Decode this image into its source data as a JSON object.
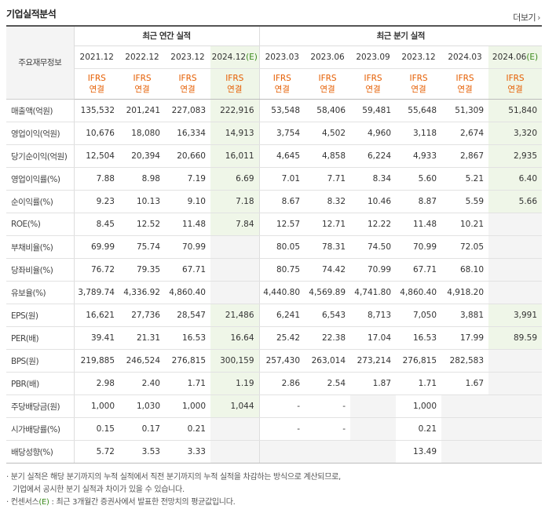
{
  "title": "기업실적분석",
  "more": {
    "label": "더보기",
    "icon": "chevron-right-icon"
  },
  "header": {
    "row_label": "주요재무정보",
    "annual_group": "최근 연간 실적",
    "quarter_group": "최근 분기 실적",
    "ifrs_top": "IFRS",
    "ifrs_bottom": "연결",
    "annual_periods": [
      "2021.12",
      "2022.12",
      "2023.12",
      "2024.12"
    ],
    "annual_est_mark": "(E)",
    "quarter_periods": [
      "2023.03",
      "2023.06",
      "2023.09",
      "2023.12",
      "2024.03",
      "2024.06"
    ],
    "quarter_est_mark": "(E)"
  },
  "rows": [
    {
      "label": "매출액(억원)",
      "values": [
        "135,532",
        "201,241",
        "227,083",
        "222,916",
        "53,548",
        "58,406",
        "59,481",
        "55,648",
        "51,309",
        "51,840"
      ]
    },
    {
      "label": "영업이익(억원)",
      "values": [
        "10,676",
        "18,080",
        "16,334",
        "14,913",
        "3,754",
        "4,502",
        "4,960",
        "3,118",
        "2,674",
        "3,320"
      ]
    },
    {
      "label": "당기순이익(억원)",
      "values": [
        "12,504",
        "20,394",
        "20,660",
        "16,011",
        "4,645",
        "4,858",
        "6,224",
        "4,933",
        "2,867",
        "2,935"
      ]
    },
    {
      "label": "영업이익률(%)",
      "values": [
        "7.88",
        "8.98",
        "7.19",
        "6.69",
        "7.01",
        "7.71",
        "8.34",
        "5.60",
        "5.21",
        "6.40"
      ]
    },
    {
      "label": "순이익률(%)",
      "values": [
        "9.23",
        "10.13",
        "9.10",
        "7.18",
        "8.67",
        "8.32",
        "10.46",
        "8.87",
        "5.59",
        "5.66"
      ]
    },
    {
      "label": "ROE(%)",
      "values": [
        "8.45",
        "12.52",
        "11.48",
        "7.84",
        "12.57",
        "12.71",
        "12.22",
        "11.48",
        "10.21",
        ""
      ]
    },
    {
      "label": "부채비율(%)",
      "values": [
        "69.99",
        "75.74",
        "70.99",
        "",
        "80.05",
        "78.31",
        "74.50",
        "70.99",
        "72.05",
        ""
      ]
    },
    {
      "label": "당좌비율(%)",
      "values": [
        "76.72",
        "79.35",
        "67.71",
        "",
        "80.75",
        "74.42",
        "70.99",
        "67.71",
        "68.10",
        ""
      ]
    },
    {
      "label": "유보율(%)",
      "values": [
        "3,789.74",
        "4,336.92",
        "4,860.40",
        "",
        "4,440.80",
        "4,569.89",
        "4,741.80",
        "4,860.40",
        "4,918.20",
        ""
      ]
    },
    {
      "label": "EPS(원)",
      "values": [
        "16,621",
        "27,736",
        "28,547",
        "21,486",
        "6,241",
        "6,543",
        "8,713",
        "7,050",
        "3,881",
        "3,991"
      ]
    },
    {
      "label": "PER(배)",
      "values": [
        "39.41",
        "21.31",
        "16.53",
        "16.64",
        "25.42",
        "22.38",
        "17.04",
        "16.53",
        "17.99",
        "89.59"
      ]
    },
    {
      "label": "BPS(원)",
      "values": [
        "219,885",
        "246,524",
        "276,815",
        "300,159",
        "257,430",
        "263,014",
        "273,214",
        "276,815",
        "282,583",
        ""
      ]
    },
    {
      "label": "PBR(배)",
      "values": [
        "2.98",
        "2.40",
        "1.71",
        "1.19",
        "2.86",
        "2.54",
        "1.87",
        "1.71",
        "1.67",
        ""
      ]
    },
    {
      "label": "주당배당금(원)",
      "values": [
        "1,000",
        "1,030",
        "1,000",
        "1,044",
        "-",
        "-",
        "",
        "1,000",
        "",
        ""
      ]
    },
    {
      "label": "시가배당률(%)",
      "values": [
        "0.15",
        "0.17",
        "0.21",
        "",
        "-",
        "-",
        "",
        "0.21",
        "",
        ""
      ]
    },
    {
      "label": "배당성향(%)",
      "values": [
        "5.72",
        "3.53",
        "3.33",
        "",
        "",
        "",
        "",
        "13.49",
        "",
        ""
      ]
    }
  ],
  "notes": {
    "line1": "분기 실적은 해당 분기까지의 누적 실적에서 직전 분기까지의 누적 실적을 차감하는 방식으로 계산되므로,",
    "line2": "기업에서 공시한 분기 실적과 차이가 있을 수 있습니다.",
    "line3_prefix": "컨센서스",
    "line3_mark": "(E)",
    "line3_suffix": ": 최근 3개월간 증권사에서 발표한 전망치의 평균값입니다."
  },
  "colors": {
    "ifrs": "#e55d00",
    "estimate_bg": "#eff6e8",
    "estimate_mark": "#3b8a1c"
  }
}
